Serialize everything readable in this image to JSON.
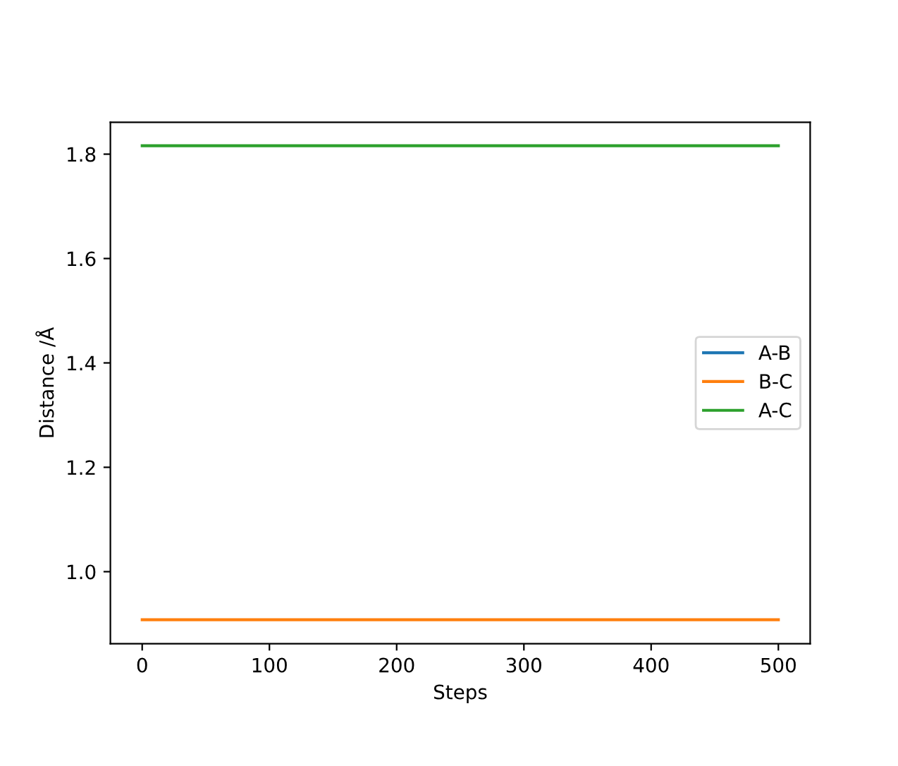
{
  "chart_data": {
    "type": "line",
    "xlabel": "Steps",
    "ylabel": "Distance /Å",
    "x": [
      0,
      500
    ],
    "series": [
      {
        "name": "A-B",
        "color": "#1f77b4",
        "values": [
          null,
          null
        ]
      },
      {
        "name": "B-C",
        "color": "#ff7f0e",
        "values": [
          0.908,
          0.908
        ]
      },
      {
        "name": "A-C",
        "color": "#2ca02c",
        "values": [
          1.816,
          1.816
        ]
      }
    ],
    "xlim": [
      -25,
      525
    ],
    "xticks": [
      0,
      100,
      200,
      300,
      400,
      500
    ],
    "ylim": [
      0.862,
      1.861
    ],
    "yticks": [
      {
        "value": 1.0,
        "label": "1.0"
      },
      {
        "value": 1.2,
        "label": "1.2"
      },
      {
        "value": 1.4,
        "label": "1.4"
      },
      {
        "value": 1.6,
        "label": "1.6"
      },
      {
        "value": 1.8,
        "label": "1.8"
      }
    ],
    "grid": false,
    "legend": "right",
    "marker": "none",
    "line_style": "solid"
  }
}
